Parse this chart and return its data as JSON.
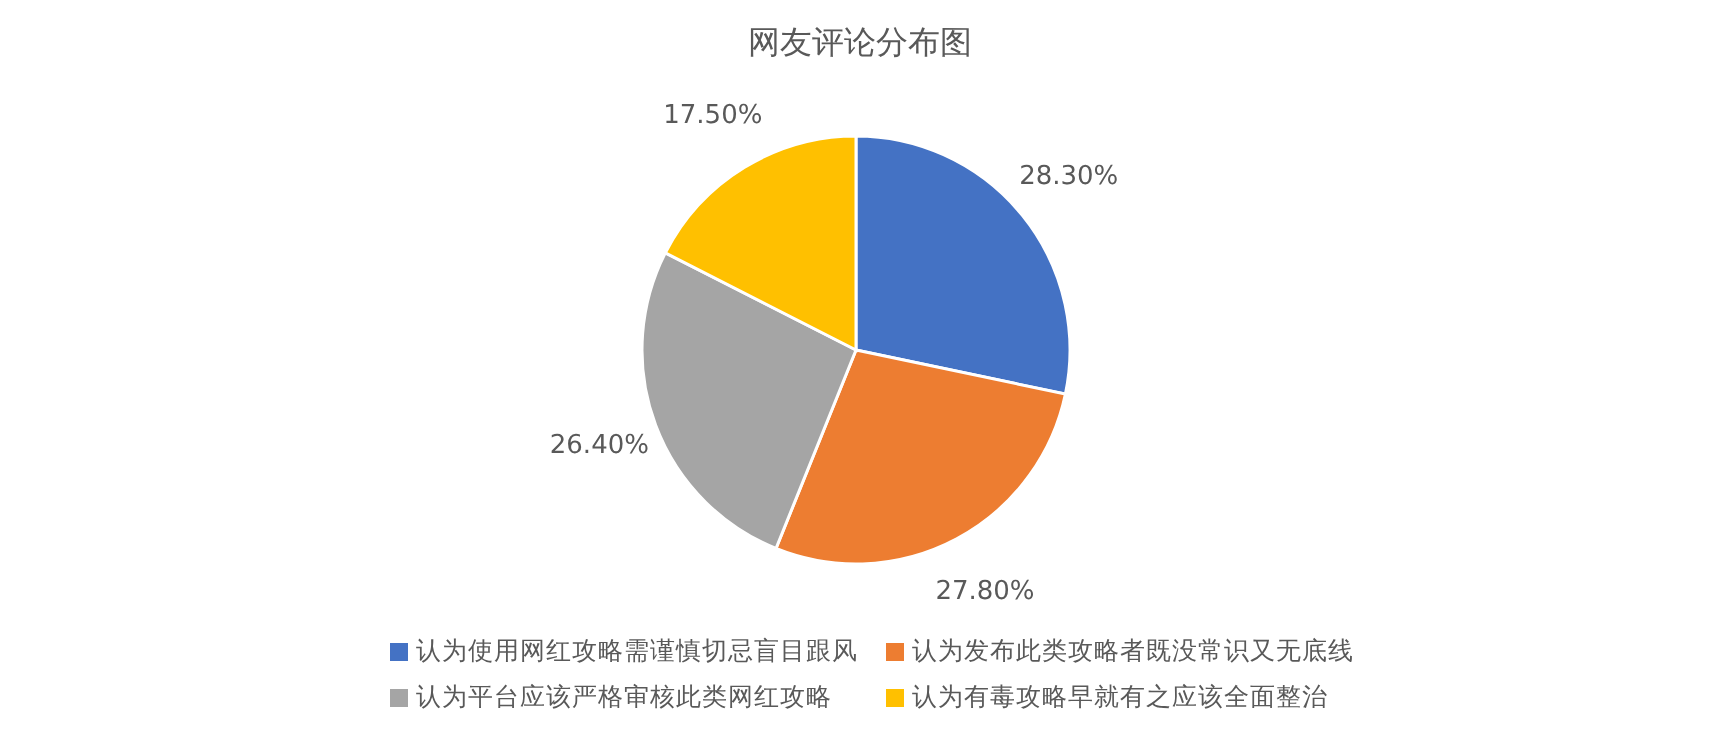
{
  "chart_data": {
    "type": "pie",
    "title": "网友评论分布图",
    "categories": [
      "认为使用网红攻略需谨慎切忌盲目跟风",
      "认为发布此类攻略者既没常识又无底线",
      "认为平台应该严格审核此类网红攻略",
      "认为有毒攻略早就有之应该全面整治"
    ],
    "values": [
      28.3,
      27.8,
      26.4,
      17.5
    ],
    "value_labels": [
      "28.30%",
      "27.80%",
      "26.40%",
      "17.50%"
    ],
    "colors": [
      "#4472c4",
      "#ed7d31",
      "#a5a5a5",
      "#ffc000"
    ],
    "legend": "bottom"
  }
}
